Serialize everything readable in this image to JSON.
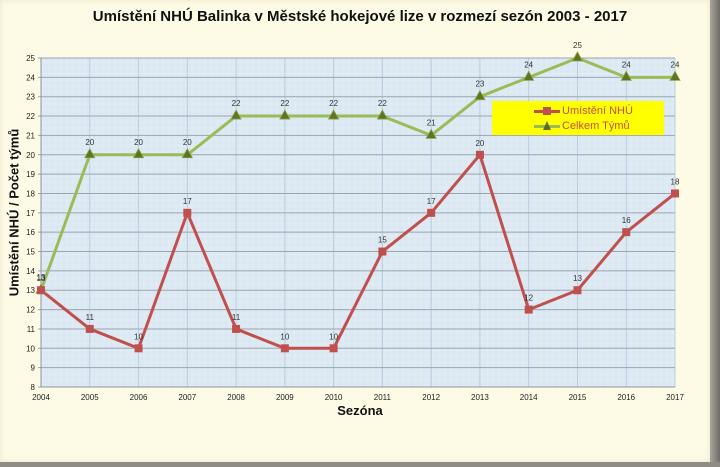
{
  "chart_data": {
    "type": "line",
    "title": "Umístění NHÚ Balinka v Městské hokejové lize  v rozmezí sezón 2003 - 2017",
    "xlabel": "Sezóna",
    "ylabel": "Umístění NHÚ / Počet týmů",
    "ylim": [
      8,
      25
    ],
    "yticks": [
      8,
      9,
      10,
      11,
      12,
      13,
      14,
      15,
      16,
      17,
      18,
      19,
      20,
      21,
      22,
      23,
      24,
      25
    ],
    "categories": [
      "2004",
      "2005",
      "2006",
      "2007",
      "2008",
      "2009",
      "2010",
      "2011",
      "2012",
      "2013",
      "2014",
      "2015",
      "2016",
      "2017"
    ],
    "grid": true,
    "legend_position": "upper right (inside plot, yellow box)",
    "series": [
      {
        "name": "Umístění NHÚ",
        "color": "#c0504d",
        "marker": "square",
        "values": [
          13,
          11,
          10,
          17,
          11,
          10,
          10,
          15,
          17,
          20,
          12,
          13,
          16,
          18
        ]
      },
      {
        "name": "Celkem Týmů",
        "color": "#9bbb59",
        "marker": "triangle",
        "values": [
          13,
          20,
          20,
          20,
          22,
          22,
          22,
          22,
          21,
          23,
          24,
          25,
          24,
          24
        ]
      }
    ]
  },
  "legend": {
    "items": [
      {
        "label": "Umístění NHÚ"
      },
      {
        "label": "Celkem Týmů"
      }
    ]
  }
}
